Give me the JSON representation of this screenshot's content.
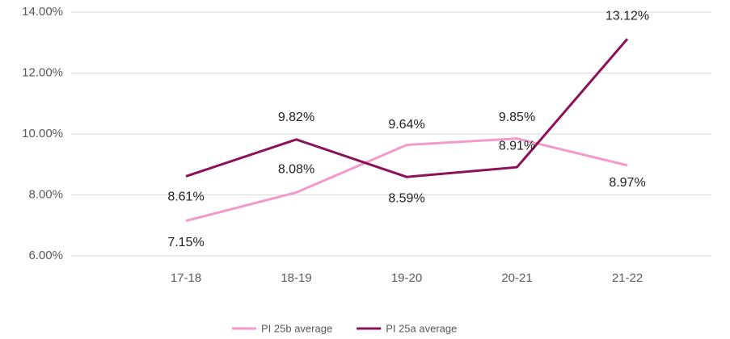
{
  "chart_data": {
    "type": "line",
    "categories": [
      "17-18",
      "18-19",
      "19-20",
      "20-21",
      "21-22"
    ],
    "series": [
      {
        "name": "PI 25b average",
        "color": "#f49ac9",
        "values": [
          7.15,
          8.08,
          9.64,
          9.85,
          8.97
        ],
        "value_labels": [
          "7.15%",
          "8.08%",
          "9.64%",
          "9.85%",
          "8.97%"
        ]
      },
      {
        "name": "PI 25a average",
        "color": "#8b1158",
        "values": [
          8.61,
          9.82,
          8.59,
          8.91,
          13.12
        ],
        "value_labels": [
          "8.61%",
          "9.82%",
          "8.59%",
          "8.91%",
          "13.12%"
        ]
      }
    ],
    "ylim": [
      6,
      14
    ],
    "yticks": [
      {
        "value": 6,
        "label": "6.00%"
      },
      {
        "value": 8,
        "label": "8.00%"
      },
      {
        "value": 10,
        "label": "10.00%"
      },
      {
        "value": 12,
        "label": "12.00%"
      },
      {
        "value": 14,
        "label": "14.00%"
      }
    ],
    "grid": true,
    "legend": "bottom"
  }
}
